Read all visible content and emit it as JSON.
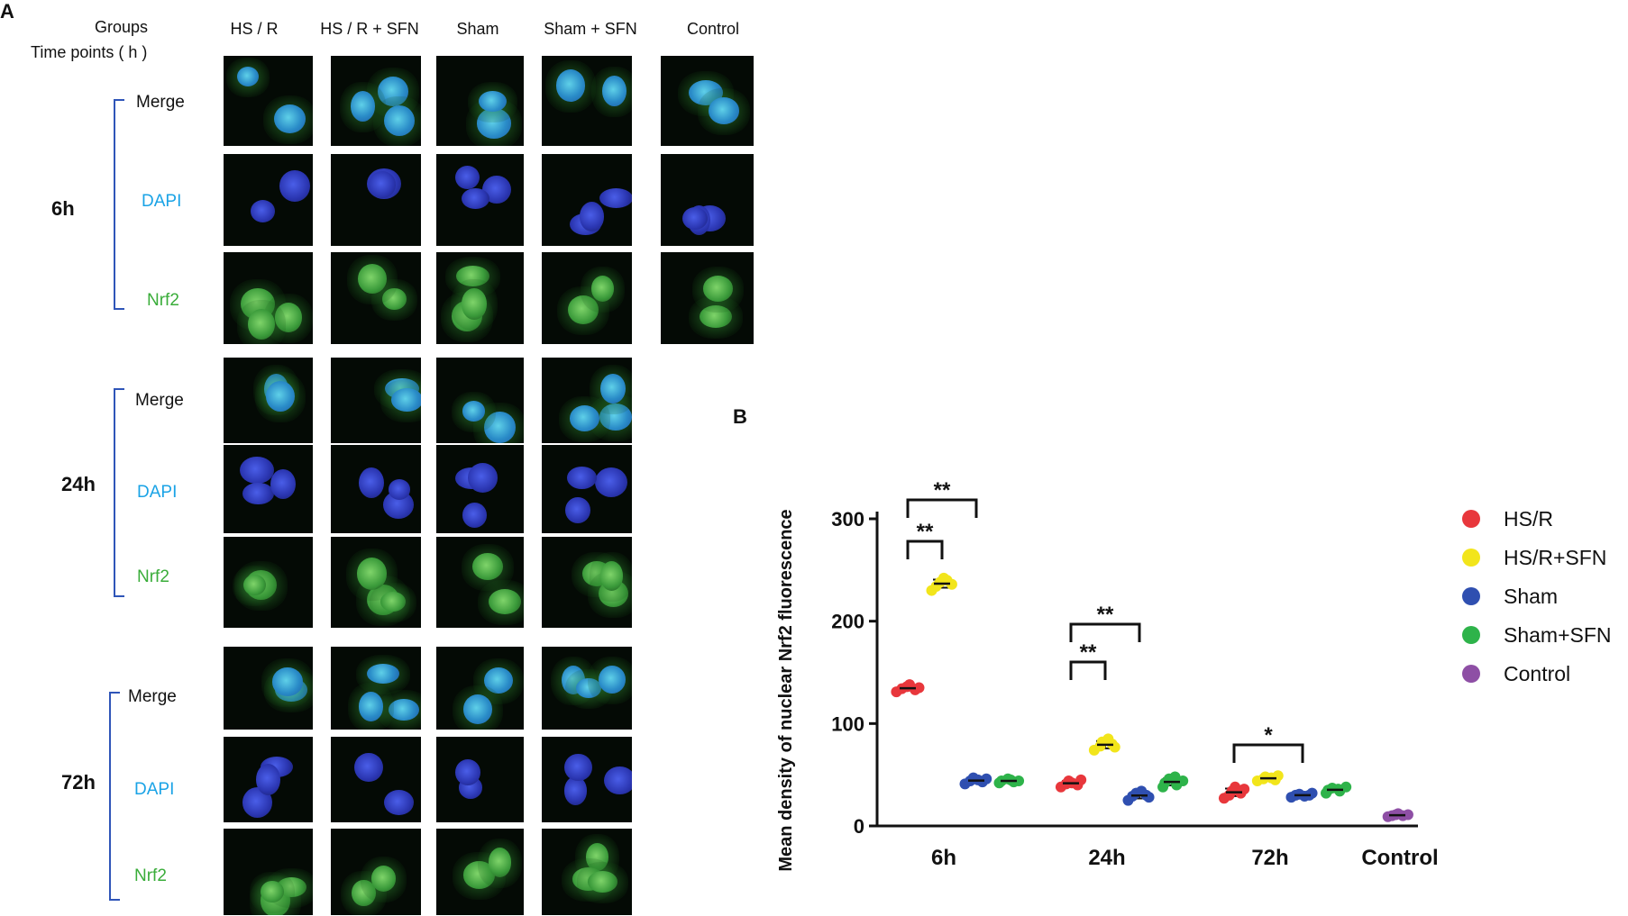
{
  "panelA": {
    "letter": "A",
    "header": {
      "groups_label": "Groups",
      "timepoints_label": "Time points ( h )",
      "columns": [
        "HS / R",
        "HS / R + SFN",
        "Sham",
        "Sham + SFN",
        "Control"
      ]
    },
    "timepoints": [
      {
        "label": "6h",
        "channels": [
          "Merge",
          "DAPI",
          "Nrf2"
        ]
      },
      {
        "label": "24h",
        "channels": [
          "Merge",
          "DAPI",
          "Nrf2"
        ]
      },
      {
        "label": "72h",
        "channels": [
          "Merge",
          "DAPI",
          "Nrf2"
        ]
      }
    ]
  },
  "panelB": {
    "letter": "B",
    "chart_data": {
      "type": "scatter",
      "ylabel": "Mean density of nuclear Nrf2 fluorescence",
      "xlabel": "",
      "ylim": [
        0,
        300
      ],
      "yticks": [
        0,
        100,
        200,
        300
      ],
      "categories": [
        "6h",
        "24h",
        "72h",
        "Control"
      ],
      "legend_position": "right",
      "series": [
        {
          "name": "HS/R",
          "color": "#e8373c",
          "values": {
            "6h": [
              131,
              134,
              136,
              138,
              133,
              135
            ],
            "24h": [
              38,
              41,
              44,
              42,
              40,
              45
            ],
            "72h": [
              27,
              30,
              34,
              38,
              32,
              36
            ]
          }
        },
        {
          "name": "HS/R+SFN",
          "color": "#f2e51b",
          "values": {
            "6h": [
              230,
              234,
              238,
              242,
              240,
              236
            ],
            "24h": [
              74,
              78,
              82,
              85,
              80,
              77
            ],
            "72h": [
              44,
              46,
              48,
              47,
              45,
              49
            ]
          }
        },
        {
          "name": "Sham",
          "color": "#2f4fb0",
          "values": {
            "6h": [
              41,
              44,
              47,
              45,
              43,
              46
            ],
            "24h": [
              25,
              29,
              32,
              34,
              30,
              28
            ],
            "72h": [
              28,
              30,
              31,
              29,
              30,
              32
            ]
          }
        },
        {
          "name": "Sham+SFN",
          "color": "#2eb34a",
          "values": {
            "6h": [
              42,
              44,
              46,
              45,
              43,
              44
            ],
            "24h": [
              38,
              42,
              46,
              48,
              40,
              44
            ],
            "72h": [
              32,
              35,
              37,
              36,
              34,
              38
            ]
          }
        },
        {
          "name": "Control",
          "color": "#8e4fa5",
          "values": {
            "Control": [
              9,
              10,
              11,
              12,
              10,
              11
            ]
          }
        }
      ],
      "significance": [
        {
          "timepoint": "6h",
          "from": "HS/R",
          "to": "HS/R+SFN",
          "label": "**"
        },
        {
          "timepoint": "6h",
          "from": "HS/R",
          "to": "Sham",
          "label": "**"
        },
        {
          "timepoint": "24h",
          "from": "HS/R",
          "to": "HS/R+SFN",
          "label": "**"
        },
        {
          "timepoint": "24h",
          "from": "HS/R",
          "to": "Sham",
          "label": "**"
        },
        {
          "timepoint": "72h",
          "from": "HS/R",
          "to": "Sham",
          "label": "*"
        }
      ]
    }
  }
}
